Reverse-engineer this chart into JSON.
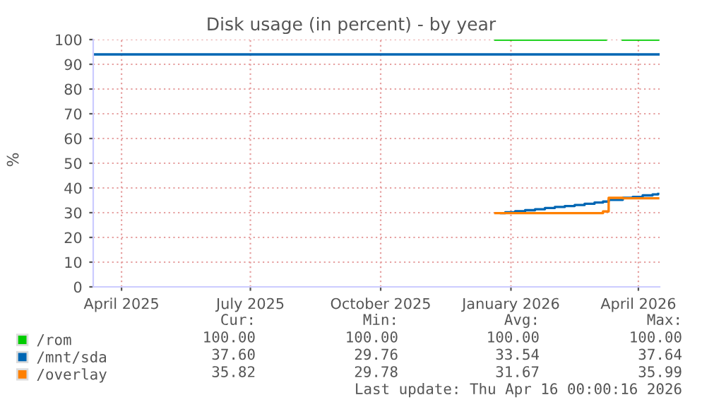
{
  "chart_data": {
    "type": "step",
    "title": "Disk usage (in percent) - by year",
    "ylabel": "%",
    "xlim": [
      "2025-03-12",
      "2026-04-16"
    ],
    "xticks": [
      {
        "value": "2025-04-01",
        "label": "April 2025"
      },
      {
        "value": "2025-07-01",
        "label": "July 2025"
      },
      {
        "value": "2025-10-01",
        "label": "October 2025"
      },
      {
        "value": "2026-01-01",
        "label": "January 2026"
      },
      {
        "value": "2026-04-01",
        "label": "April 2026"
      }
    ],
    "ylim": [
      0,
      100
    ],
    "yticks": [
      0,
      10,
      20,
      30,
      40,
      50,
      60,
      70,
      80,
      90,
      100
    ],
    "grid": true,
    "legend": "bottom",
    "series": [
      {
        "name": "/rom",
        "color": "#00cc00",
        "x": [
          "2025-12-21",
          "2026-03-07",
          "2026-03-09",
          "2026-03-21",
          "2026-04-15"
        ],
        "values": [
          100,
          100,
          null,
          100,
          100
        ]
      },
      {
        "name": "/mnt/sda",
        "color": "#0066b3",
        "x": [
          "2025-12-25",
          "2025-12-28",
          "2026-01-04",
          "2026-01-11",
          "2026-01-18",
          "2026-01-25",
          "2026-02-01",
          "2026-02-08",
          "2026-02-15",
          "2026-02-22",
          "2026-03-01",
          "2026-03-07",
          "2026-03-11",
          "2026-03-21",
          "2026-03-28",
          "2026-04-04",
          "2026-04-11",
          "2026-04-15"
        ],
        "values": [
          29.8,
          30.2,
          30.6,
          31.0,
          31.4,
          31.9,
          32.3,
          32.7,
          33.1,
          33.6,
          34.1,
          34.5,
          35.2,
          36.0,
          36.4,
          37.0,
          37.4,
          37.6
        ]
      },
      {
        "name": "/overlay",
        "color": "#ff8000",
        "x": [
          "2025-12-21",
          "2026-03-06",
          "2026-03-07",
          "2026-03-11",
          "2026-03-21",
          "2026-04-15"
        ],
        "values": [
          29.8,
          29.8,
          30.5,
          36,
          35.8,
          35.8
        ]
      }
    ],
    "ref_lines": [
      {
        "axis": "y",
        "value": 94,
        "color": "#0066b3"
      }
    ],
    "annotations": [
      "Cur:",
      "Min:",
      "Avg:",
      "Max:",
      "100.00",
      "100.00",
      "100.00",
      "100.00",
      "37.60",
      "29.76",
      "33.54",
      "37.64",
      "35.82",
      "29.78",
      "31.67",
      "35.99",
      "Last update: Thu Apr 16 00:00:16 2026"
    ]
  }
}
